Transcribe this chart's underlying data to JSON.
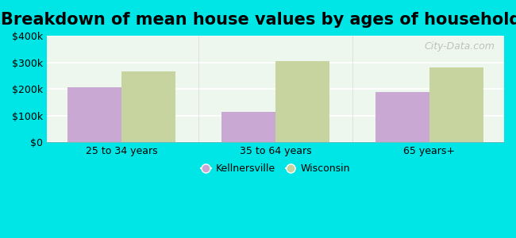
{
  "title": "Breakdown of mean house values by ages of householders",
  "categories": [
    "25 to 34 years",
    "35 to 64 years",
    "65 years+"
  ],
  "series": {
    "Kellnersville": [
      205000,
      113000,
      190000
    ],
    "Wisconsin": [
      265000,
      305000,
      280000
    ]
  },
  "bar_colors": {
    "Kellnersville": "#c9a8d4",
    "Wisconsin": "#c8d4a0"
  },
  "ylim": [
    0,
    400000
  ],
  "yticks": [
    0,
    100000,
    200000,
    300000,
    400000
  ],
  "ytick_labels": [
    "$0",
    "$100k",
    "$200k",
    "$300k",
    "$400k"
  ],
  "background_outer": "#00e5e5",
  "background_inner": "#eef7ee",
  "title_fontsize": 15,
  "bar_width": 0.35,
  "grid_color": "#ffffff",
  "watermark": "City-Data.com"
}
